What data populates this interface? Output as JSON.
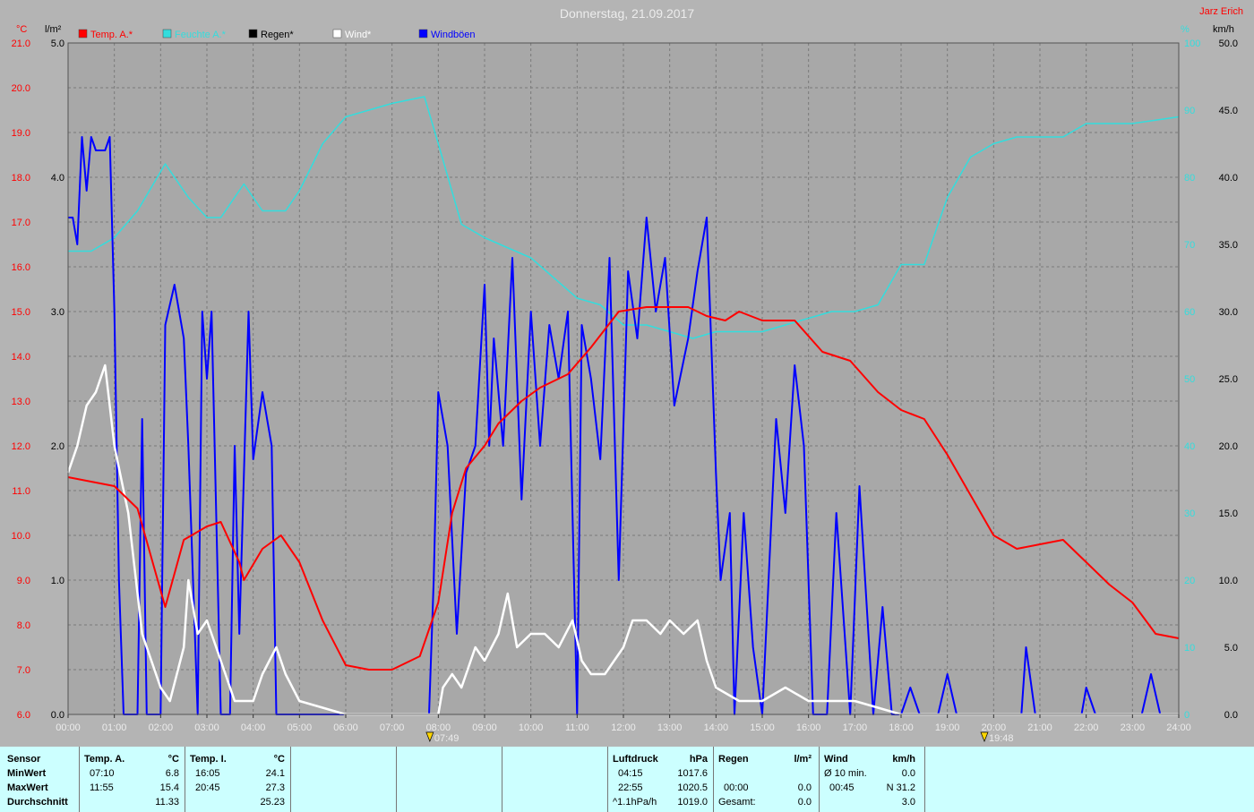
{
  "title": "Donnerstag, 21.09.2017",
  "author": "Jarz Erich",
  "units": {
    "temp": "°C",
    "rain": "l/m²",
    "humidity": "%",
    "wind": "km/h"
  },
  "legend": [
    {
      "label": "Temp. A.*",
      "color": "#ff0000"
    },
    {
      "label": "Feuchte A.*",
      "color": "#33dddd"
    },
    {
      "label": "Regen*",
      "color": "#000000"
    },
    {
      "label": "Wind*",
      "color": "#ffffff"
    },
    {
      "label": "Windböen",
      "color": "#0000ff"
    }
  ],
  "sun_markers": [
    "07:49",
    "19:48"
  ],
  "chart_data": {
    "type": "line",
    "x_unit": "hours",
    "xlim": [
      0,
      24
    ],
    "x_ticks": [
      "00:00",
      "01:00",
      "02:00",
      "03:00",
      "04:00",
      "05:00",
      "06:00",
      "07:00",
      "08:00",
      "09:00",
      "10:00",
      "11:00",
      "12:00",
      "13:00",
      "14:00",
      "15:00",
      "16:00",
      "17:00",
      "18:00",
      "19:00",
      "20:00",
      "21:00",
      "22:00",
      "23:00",
      "24:00"
    ],
    "axes": {
      "temp": {
        "lim": [
          6,
          21
        ],
        "ticks": [
          "6.0",
          "7.0",
          "8.0",
          "9.0",
          "10.0",
          "11.0",
          "12.0",
          "13.0",
          "14.0",
          "15.0",
          "16.0",
          "17.0",
          "18.0",
          "19.0",
          "20.0",
          "21.0"
        ]
      },
      "rain": {
        "lim": [
          0,
          5
        ],
        "ticks": [
          "0.0",
          "1.0",
          "2.0",
          "3.0",
          "4.0",
          "5.0"
        ]
      },
      "humidity": {
        "lim": [
          0,
          100
        ],
        "ticks": [
          "0",
          "10",
          "20",
          "30",
          "40",
          "50",
          "60",
          "70",
          "80",
          "90",
          "100"
        ]
      },
      "wind": {
        "lim": [
          0,
          50
        ],
        "ticks": [
          "0.0",
          "5.0",
          "10.0",
          "15.0",
          "20.0",
          "25.0",
          "30.0",
          "35.0",
          "40.0",
          "45.0",
          "50.0"
        ]
      }
    },
    "series": [
      {
        "name": "Temp. A.*",
        "axis": "temp",
        "color": "#ff0000",
        "points": [
          [
            0,
            11.3
          ],
          [
            0.5,
            11.2
          ],
          [
            1,
            11.1
          ],
          [
            1.5,
            10.6
          ],
          [
            1.8,
            9.5
          ],
          [
            2.1,
            8.4
          ],
          [
            2.5,
            9.9
          ],
          [
            3,
            10.2
          ],
          [
            3.3,
            10.3
          ],
          [
            3.7,
            9.4
          ],
          [
            3.8,
            9.0
          ],
          [
            4.2,
            9.7
          ],
          [
            4.6,
            10.0
          ],
          [
            5,
            9.4
          ],
          [
            5.5,
            8.1
          ],
          [
            6,
            7.1
          ],
          [
            6.5,
            7.0
          ],
          [
            7,
            7.0
          ],
          [
            7.6,
            7.3
          ],
          [
            8,
            8.5
          ],
          [
            8.3,
            10.5
          ],
          [
            8.6,
            11.5
          ],
          [
            9,
            12.0
          ],
          [
            9.3,
            12.5
          ],
          [
            9.8,
            13.0
          ],
          [
            10.2,
            13.3
          ],
          [
            10.8,
            13.6
          ],
          [
            11.3,
            14.2
          ],
          [
            11.9,
            15.0
          ],
          [
            12.5,
            15.1
          ],
          [
            13.4,
            15.1
          ],
          [
            13.8,
            14.9
          ],
          [
            14.2,
            14.8
          ],
          [
            14.5,
            15.0
          ],
          [
            15,
            14.8
          ],
          [
            15.7,
            14.8
          ],
          [
            16.3,
            14.1
          ],
          [
            16.9,
            13.9
          ],
          [
            17.5,
            13.2
          ],
          [
            18,
            12.8
          ],
          [
            18.5,
            12.6
          ],
          [
            19,
            11.8
          ],
          [
            19.5,
            10.9
          ],
          [
            20,
            10.0
          ],
          [
            20.5,
            9.7
          ],
          [
            21,
            9.8
          ],
          [
            21.5,
            9.9
          ],
          [
            22,
            9.4
          ],
          [
            22.5,
            8.9
          ],
          [
            23,
            8.5
          ],
          [
            23.5,
            7.8
          ],
          [
            24,
            7.7
          ]
        ]
      },
      {
        "name": "Feuchte A.*",
        "axis": "humidity",
        "color": "#33dddd",
        "points": [
          [
            0,
            69
          ],
          [
            0.5,
            69
          ],
          [
            1,
            71
          ],
          [
            1.5,
            75
          ],
          [
            2.1,
            82
          ],
          [
            2.6,
            77
          ],
          [
            3,
            74
          ],
          [
            3.3,
            74
          ],
          [
            3.8,
            79
          ],
          [
            4.2,
            75
          ],
          [
            4.7,
            75
          ],
          [
            5,
            78
          ],
          [
            5.5,
            85
          ],
          [
            6,
            89
          ],
          [
            6.5,
            90
          ],
          [
            7,
            91
          ],
          [
            7.7,
            92
          ],
          [
            8,
            85
          ],
          [
            8.5,
            73
          ],
          [
            9,
            71
          ],
          [
            10,
            68
          ],
          [
            11,
            62
          ],
          [
            11.5,
            61
          ],
          [
            12,
            58
          ],
          [
            12.5,
            58
          ],
          [
            13,
            57
          ],
          [
            13.5,
            56
          ],
          [
            14,
            57
          ],
          [
            14.5,
            57
          ],
          [
            15,
            57
          ],
          [
            15.5,
            58
          ],
          [
            16,
            59
          ],
          [
            16.5,
            60
          ],
          [
            17,
            60
          ],
          [
            17.5,
            61
          ],
          [
            18,
            67
          ],
          [
            18.5,
            67
          ],
          [
            19,
            77
          ],
          [
            19.5,
            83
          ],
          [
            20,
            85
          ],
          [
            20.5,
            86
          ],
          [
            21,
            86
          ],
          [
            21.5,
            86
          ],
          [
            22,
            88
          ],
          [
            23,
            88
          ],
          [
            24,
            89
          ]
        ]
      },
      {
        "name": "Wind*",
        "axis": "wind",
        "color": "#ffffff",
        "points": [
          [
            0,
            18
          ],
          [
            0.2,
            20
          ],
          [
            0.4,
            23
          ],
          [
            0.6,
            24
          ],
          [
            0.8,
            26
          ],
          [
            1,
            20
          ],
          [
            1.3,
            15
          ],
          [
            1.6,
            6
          ],
          [
            2,
            2
          ],
          [
            2.2,
            1
          ],
          [
            2.5,
            5
          ],
          [
            2.6,
            10
          ],
          [
            2.8,
            6
          ],
          [
            3,
            7
          ],
          [
            3.3,
            4
          ],
          [
            3.6,
            1
          ],
          [
            4,
            1
          ],
          [
            4.2,
            3
          ],
          [
            4.5,
            5
          ],
          [
            4.7,
            3
          ],
          [
            5,
            1
          ],
          [
            5.5,
            0.5
          ],
          [
            6,
            0
          ],
          [
            8,
            0
          ],
          [
            8.1,
            2
          ],
          [
            8.3,
            3
          ],
          [
            8.5,
            2
          ],
          [
            8.8,
            5
          ],
          [
            9,
            4
          ],
          [
            9.3,
            6
          ],
          [
            9.5,
            9
          ],
          [
            9.7,
            5
          ],
          [
            10,
            6
          ],
          [
            10.3,
            6
          ],
          [
            10.6,
            5
          ],
          [
            10.9,
            7
          ],
          [
            11.1,
            4
          ],
          [
            11.3,
            3
          ],
          [
            11.6,
            3
          ],
          [
            12,
            5
          ],
          [
            12.2,
            7
          ],
          [
            12.5,
            7
          ],
          [
            12.8,
            6
          ],
          [
            13,
            7
          ],
          [
            13.3,
            6
          ],
          [
            13.6,
            7
          ],
          [
            13.8,
            4
          ],
          [
            14,
            2
          ],
          [
            14.5,
            1
          ],
          [
            15,
            1
          ],
          [
            15.5,
            2
          ],
          [
            16,
            1
          ],
          [
            16.5,
            1
          ],
          [
            17,
            1
          ],
          [
            17.5,
            0.5
          ],
          [
            18,
            0
          ],
          [
            24,
            0
          ]
        ]
      },
      {
        "name": "Windböen",
        "axis": "wind",
        "color": "#0000ff",
        "points": [
          [
            0,
            37
          ],
          [
            0.1,
            37
          ],
          [
            0.2,
            35
          ],
          [
            0.3,
            43
          ],
          [
            0.4,
            39
          ],
          [
            0.5,
            43
          ],
          [
            0.6,
            42
          ],
          [
            0.8,
            42
          ],
          [
            0.9,
            43
          ],
          [
            1,
            30
          ],
          [
            1.1,
            10
          ],
          [
            1.2,
            0
          ],
          [
            1.5,
            0
          ],
          [
            1.6,
            22
          ],
          [
            1.7,
            0
          ],
          [
            2,
            0
          ],
          [
            2.1,
            29
          ],
          [
            2.3,
            32
          ],
          [
            2.5,
            28
          ],
          [
            2.6,
            20
          ],
          [
            2.8,
            0
          ],
          [
            2.9,
            30
          ],
          [
            3,
            25
          ],
          [
            3.1,
            30
          ],
          [
            3.3,
            0
          ],
          [
            3.5,
            0
          ],
          [
            3.6,
            20
          ],
          [
            3.7,
            6
          ],
          [
            3.9,
            30
          ],
          [
            4,
            19
          ],
          [
            4.2,
            24
          ],
          [
            4.4,
            20
          ],
          [
            4.5,
            0
          ],
          [
            4.8,
            0
          ],
          [
            7.8,
            0
          ],
          [
            7.9,
            10
          ],
          [
            8,
            24
          ],
          [
            8.2,
            20
          ],
          [
            8.4,
            6
          ],
          [
            8.6,
            18
          ],
          [
            8.8,
            20
          ],
          [
            9,
            32
          ],
          [
            9.1,
            20
          ],
          [
            9.2,
            28
          ],
          [
            9.4,
            20
          ],
          [
            9.6,
            34
          ],
          [
            9.8,
            16
          ],
          [
            10,
            30
          ],
          [
            10.2,
            20
          ],
          [
            10.4,
            29
          ],
          [
            10.6,
            25
          ],
          [
            10.8,
            30
          ],
          [
            11,
            0
          ],
          [
            11.1,
            29
          ],
          [
            11.3,
            25
          ],
          [
            11.5,
            19
          ],
          [
            11.7,
            34
          ],
          [
            11.9,
            10
          ],
          [
            12.1,
            33
          ],
          [
            12.3,
            28
          ],
          [
            12.5,
            37
          ],
          [
            12.7,
            30
          ],
          [
            12.9,
            34
          ],
          [
            13.1,
            23
          ],
          [
            13.4,
            28
          ],
          [
            13.6,
            33
          ],
          [
            13.8,
            37
          ],
          [
            14,
            18
          ],
          [
            14.1,
            10
          ],
          [
            14.3,
            15
          ],
          [
            14.4,
            0
          ],
          [
            14.6,
            15
          ],
          [
            14.8,
            5
          ],
          [
            15,
            0
          ],
          [
            15.3,
            22
          ],
          [
            15.5,
            15
          ],
          [
            15.7,
            26
          ],
          [
            15.9,
            20
          ],
          [
            16.1,
            0
          ],
          [
            16.4,
            0
          ],
          [
            16.6,
            15
          ],
          [
            16.9,
            0
          ],
          [
            17.1,
            17
          ],
          [
            17.4,
            0
          ],
          [
            17.6,
            8
          ],
          [
            17.8,
            0
          ],
          [
            18,
            0
          ],
          [
            18.2,
            2
          ],
          [
            18.4,
            0
          ],
          [
            18.8,
            0
          ],
          [
            19,
            3
          ],
          [
            19.2,
            0
          ],
          [
            20.6,
            0
          ],
          [
            20.7,
            5
          ],
          [
            20.9,
            0
          ],
          [
            21.9,
            0
          ],
          [
            22,
            2
          ],
          [
            22.2,
            0
          ],
          [
            23.2,
            0
          ],
          [
            23.4,
            3
          ],
          [
            23.6,
            0
          ],
          [
            24,
            0
          ]
        ]
      }
    ]
  },
  "table": {
    "sensor": {
      "header": "Sensor",
      "rows": [
        "MinWert",
        "MaxWert",
        "Durchschnitt"
      ]
    },
    "temp_a": {
      "header": "Temp. A.",
      "unit": "°C",
      "min_time": "07:10",
      "min_val": "6.8",
      "max_time": "11:55",
      "max_val": "15.4",
      "avg": "11.33"
    },
    "temp_i": {
      "header": "Temp. I.",
      "unit": "°C",
      "min_time": "16:05",
      "min_val": "24.1",
      "max_time": "20:45",
      "max_val": "27.3",
      "avg": "25.23"
    },
    "pressure": {
      "header": "Luftdruck",
      "unit": "hPa",
      "min_time": "04:15",
      "min_val": "1017.6",
      "max_time": "22:55",
      "max_val": "1020.5",
      "trend_label": "^1.1hPa/h",
      "trend_val": "1019.0"
    },
    "rain": {
      "header": "Regen",
      "unit": "l/m²",
      "r1_time": "00:00",
      "r1_val": "0.0",
      "total_label": "Gesamt:",
      "total_val": "0.0"
    },
    "wind": {
      "header": "Wind",
      "unit": "km/h",
      "avg_label": "Ø 10 min.",
      "avg_val": "0.0",
      "max_time": "00:45",
      "max_val": "N 31.2",
      "mean_val": "3.0"
    }
  }
}
